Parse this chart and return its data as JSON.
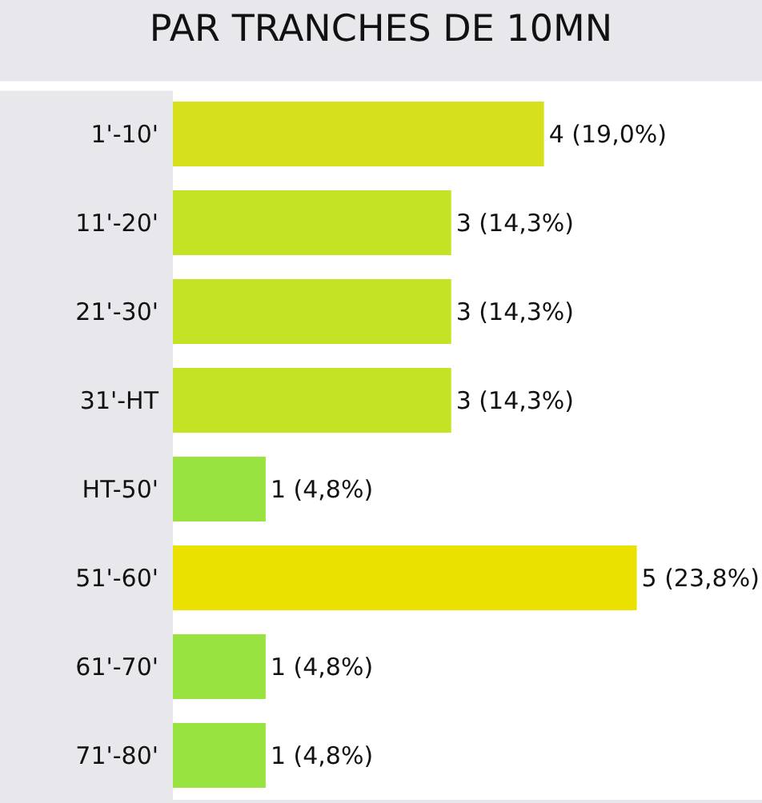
{
  "chart_data": {
    "type": "bar",
    "orientation": "horizontal",
    "title": "PAR TRANCHES DE 10MN",
    "categories": [
      "1'-10'",
      "11'-20'",
      "21'-30'",
      "31'-HT",
      "HT-50'",
      "51'-60'",
      "61'-70'",
      "71'-80'"
    ],
    "values": [
      4,
      3,
      3,
      3,
      1,
      5,
      1,
      1
    ],
    "colors": [
      "#d6e01c",
      "#c3e324",
      "#c3e324",
      "#c3e324",
      "#98e340",
      "#ebe100",
      "#98e340",
      "#98e340"
    ],
    "value_labels": [
      "4 (19,0%)",
      "3 (14,3%)",
      "3 (14,3%)",
      "3 (14,3%)",
      "1 (4,8%)",
      "5 (23,8%)",
      "1 (4,8%)",
      "1 (4,8%)"
    ]
  }
}
